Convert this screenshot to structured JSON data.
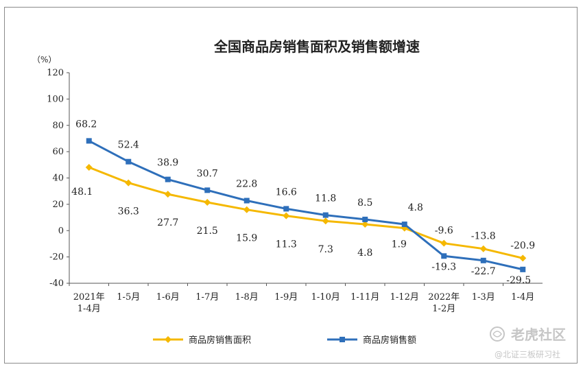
{
  "chart_data": {
    "type": "line",
    "title": "全国商品房销售面积及销售额增速",
    "unit": "（%）",
    "ylim": [
      -40,
      120
    ],
    "yticks": [
      "120",
      "100",
      "80",
      "60",
      "40",
      "20",
      "0",
      "-20",
      "-40"
    ],
    "categories": [
      [
        "2021年",
        "1-4月"
      ],
      [
        "1-5月"
      ],
      [
        "1-6月"
      ],
      [
        "1-7月"
      ],
      [
        "1-8月"
      ],
      [
        "1-9月"
      ],
      [
        "1-10月"
      ],
      [
        "1-11月"
      ],
      [
        "1-12月"
      ],
      [
        "2022年",
        "1-2月"
      ],
      [
        "1-3月"
      ],
      [
        "1-4月"
      ]
    ],
    "series": [
      {
        "name": "商品房销售面积",
        "color": "#f5b800",
        "marker": "diamond",
        "values": [
          48.1,
          36.3,
          27.7,
          21.5,
          15.9,
          11.3,
          7.3,
          4.8,
          1.9,
          -9.6,
          -13.8,
          -20.9
        ],
        "labels": [
          "48.1",
          "36.3",
          "27.7",
          "21.5",
          "15.9",
          "11.3",
          "7.3",
          "4.8",
          "1.9",
          "-9.6",
          "-13.8",
          "-20.9"
        ]
      },
      {
        "name": "商品房销售额",
        "color": "#2e6fba",
        "marker": "square",
        "values": [
          68.2,
          52.4,
          38.9,
          30.7,
          22.8,
          16.6,
          11.8,
          8.5,
          4.8,
          -19.3,
          -22.7,
          -29.5
        ],
        "labels": [
          "68.2",
          "52.4",
          "38.9",
          "30.7",
          "22.8",
          "16.6",
          "11.8",
          "8.5",
          "4.8",
          "-19.3",
          "-22.7",
          "-29.5"
        ]
      }
    ],
    "legend_position": "bottom"
  },
  "watermark": {
    "text": "老虎社区",
    "sub": "@北证三板研习社",
    "icon": "tiger-community-logo"
  }
}
